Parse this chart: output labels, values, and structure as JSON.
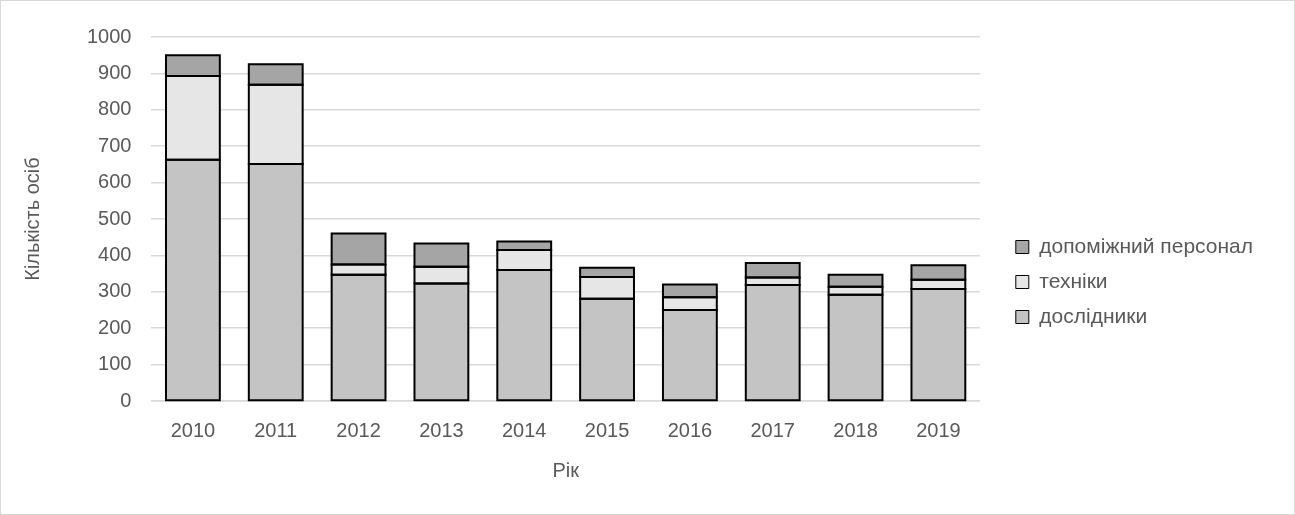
{
  "chart_data": {
    "type": "bar",
    "xlabel": "Рік",
    "ylabel": "Кількість осіб",
    "categories": [
      "2010",
      "2011",
      "2012",
      "2013",
      "2014",
      "2015",
      "2016",
      "2017",
      "2018",
      "2019"
    ],
    "series": [
      {
        "name": "дослідники",
        "color": "#c4c4c4",
        "values": [
          663,
          651,
          347,
          323,
          360,
          281,
          250,
          319,
          292,
          308
        ]
      },
      {
        "name": "техніки",
        "color": "#e6e6e6",
        "values": [
          230,
          218,
          28,
          46,
          55,
          60,
          35,
          20,
          22,
          25
        ]
      },
      {
        "name": "допоміжний персонал",
        "color": "#a5a5a5",
        "values": [
          57,
          56,
          85,
          64,
          23,
          25,
          35,
          40,
          33,
          40
        ]
      }
    ],
    "stacked": true,
    "ylim": [
      0,
      1000
    ],
    "yticks": [
      0,
      100,
      200,
      300,
      400,
      500,
      600,
      700,
      800,
      900,
      1000
    ],
    "grid": "y",
    "legend": "right"
  }
}
